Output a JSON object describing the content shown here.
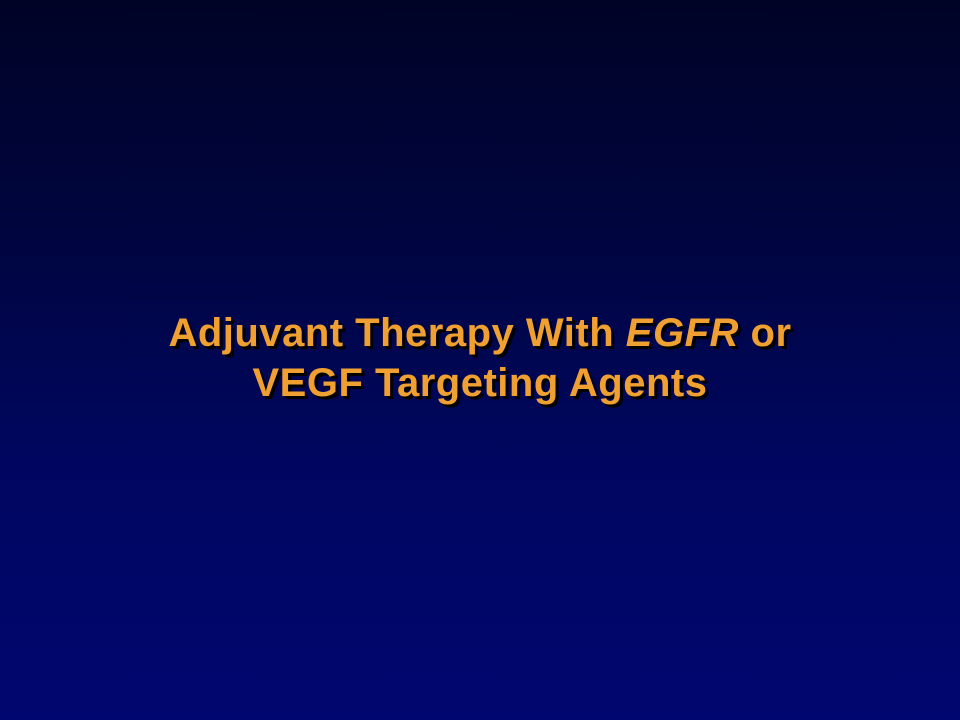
{
  "slide": {
    "title": {
      "line1_part1": "Adjuvant Therapy With ",
      "line1_italic": "EGFR",
      "line1_part2": " or",
      "line2": "VEGF Targeting Agents"
    },
    "colors": {
      "title_text": "#f0a030",
      "background_top": "#000326",
      "background_bottom": "#00066f"
    }
  }
}
